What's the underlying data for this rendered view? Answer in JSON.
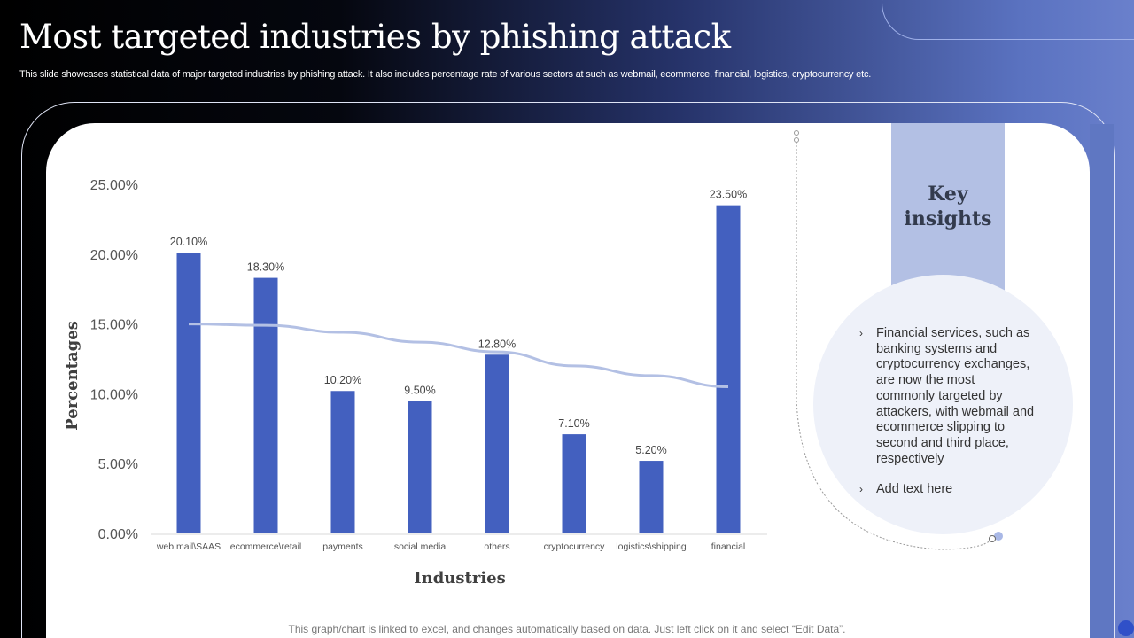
{
  "header": {
    "title": "Most targeted industries by phishing attack",
    "subtitle": "This slide showcases statistical data of major targeted industries by phishing attack. It also includes percentage rate of various sectors at such as webmail, ecommerce, financial, logistics, cryptocurrency etc."
  },
  "chart_data": {
    "type": "bar",
    "xlabel": "Industries",
    "ylabel": "Percentages",
    "categories": [
      "web mail\\SAAS",
      "ecommerce\\retail",
      "payments",
      "social media",
      "others",
      "cryptocurrency",
      "logistics\\shipping",
      "financial"
    ],
    "values": [
      20.1,
      18.3,
      10.2,
      9.5,
      12.8,
      7.1,
      5.2,
      23.5
    ],
    "data_labels": [
      "20.10%",
      "18.30%",
      "10.20%",
      "9.50%",
      "12.80%",
      "7.10%",
      "5.20%",
      "23.50%"
    ],
    "trendline": [
      15.0,
      14.9,
      14.4,
      13.7,
      13.0,
      12.0,
      11.3,
      10.5
    ],
    "yticks": [
      "0.00%",
      "5.00%",
      "10.00%",
      "15.00%",
      "20.00%",
      "25.00%"
    ],
    "ylim": [
      0,
      25
    ],
    "grid": false,
    "colors": {
      "bar": "#4360bf",
      "trendline": "#b3c0e4"
    }
  },
  "insights": {
    "title": "Key insights",
    "bullets": [
      "Financial services, such as banking systems and cryptocurrency exchanges, are now the most commonly targeted by attackers, with webmail and ecommerce slipping to second and third place, respectively",
      "Add text here"
    ]
  },
  "footer": "This graph/chart is linked to excel,  and changes automatically based on data. Just left click on it and select “Edit Data”."
}
